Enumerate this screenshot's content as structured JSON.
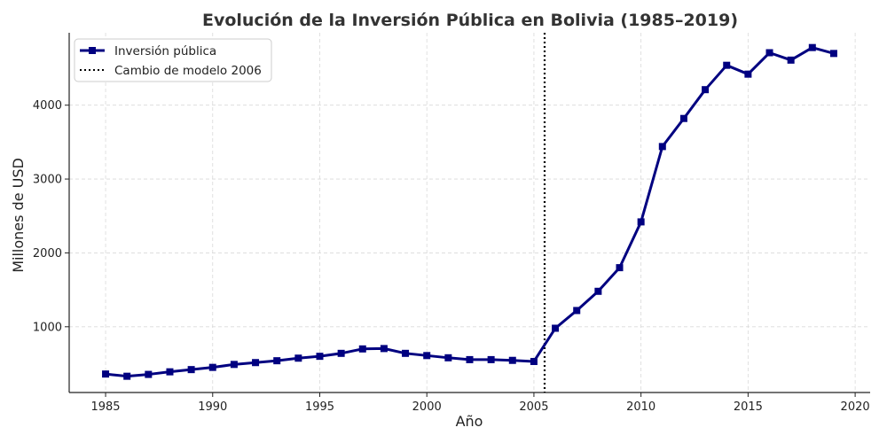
{
  "chart_data": {
    "type": "line",
    "title": "Evolución de la Inversión Pública en Bolivia (1985–2019)",
    "xlabel": "Año",
    "ylabel": "Millones de USD",
    "xlim": [
      1983.3,
      2020.7
    ],
    "ylim": [
      110,
      4980
    ],
    "xticks": [
      1985,
      1990,
      1995,
      2000,
      2005,
      2010,
      2015,
      2020
    ],
    "yticks": [
      1000,
      2000,
      3000,
      4000
    ],
    "grid": true,
    "legend_position": "top-left",
    "series": [
      {
        "name": "Inversión pública",
        "color": "#000080",
        "marker": "square",
        "x": [
          1985,
          1986,
          1987,
          1988,
          1989,
          1990,
          1991,
          1992,
          1993,
          1994,
          1995,
          1996,
          1997,
          1998,
          1999,
          2000,
          2001,
          2002,
          2003,
          2004,
          2005,
          2006,
          2007,
          2008,
          2009,
          2010,
          2011,
          2012,
          2013,
          2014,
          2015,
          2016,
          2017,
          2018,
          2019
        ],
        "y": [
          360,
          330,
          355,
          390,
          420,
          450,
          490,
          515,
          540,
          575,
          600,
          640,
          700,
          705,
          640,
          610,
          580,
          555,
          555,
          545,
          530,
          980,
          1220,
          1480,
          1800,
          2420,
          3440,
          3820,
          4210,
          4540,
          4420,
          4710,
          4610,
          4780,
          4700
        ]
      }
    ],
    "reference_line": {
      "name": "Cambio de modelo 2006",
      "x": 2005.5,
      "color": "#000000",
      "style": "dotted"
    }
  }
}
